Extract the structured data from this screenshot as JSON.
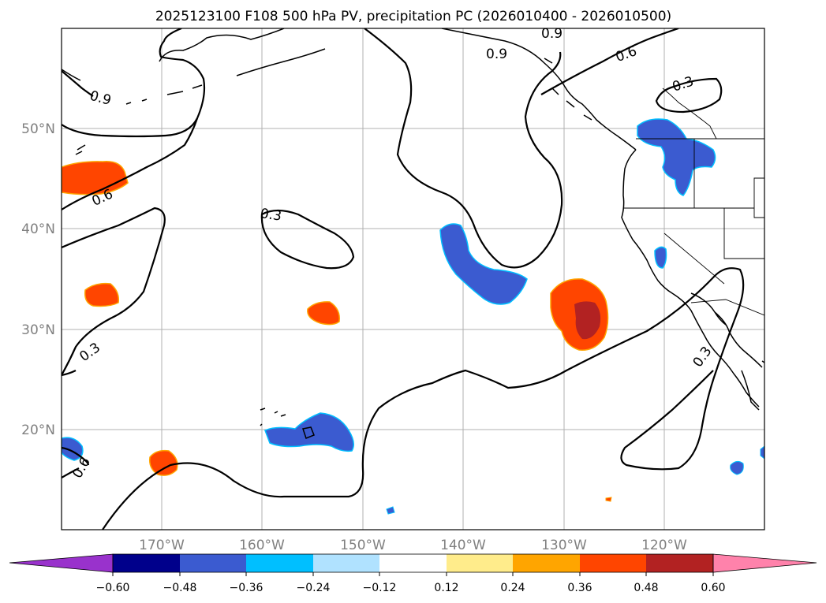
{
  "title": "2025123100 F108 500 hPa PV, precipitation PC (2026010400 - 2026010500)",
  "axes": {
    "lon_labels": [
      "170°W",
      "160°W",
      "150°W",
      "140°W",
      "130°W",
      "120°W"
    ],
    "lat_labels": [
      "50°N",
      "40°N",
      "30°N",
      "20°N"
    ]
  },
  "contour_labels": {
    "c_09_a": "0.9",
    "c_09_b": "0.9",
    "c_09_c": "0.9",
    "c_06_a": "0.6",
    "c_06_b": "0.6",
    "c_06_c": "0.6",
    "c_03_a": "0.3",
    "c_03_b": "0.3",
    "c_03_c": "0.3",
    "c_03_d": "0.3"
  },
  "colorbar": {
    "colors": [
      "#9932cc",
      "#00008b",
      "#3b5bd0",
      "#00bfff",
      "#b0e2ff",
      "#ffffff",
      "#ffec8b",
      "#ffa500",
      "#ff4500",
      "#b22222",
      "#ff82ab"
    ],
    "ticks": [
      "−0.60",
      "−0.48",
      "−0.36",
      "−0.24",
      "−0.12",
      "0.12",
      "0.24",
      "0.36",
      "0.48",
      "0.60"
    ]
  },
  "colors": {
    "neg_fill": "#3b5bd0",
    "neg_edge": "#00bfff",
    "pos_fill": "#ff4500",
    "pos_strong": "#b22222",
    "pos_edge": "#ffa500",
    "pos_outer": "#ffec8b"
  }
}
